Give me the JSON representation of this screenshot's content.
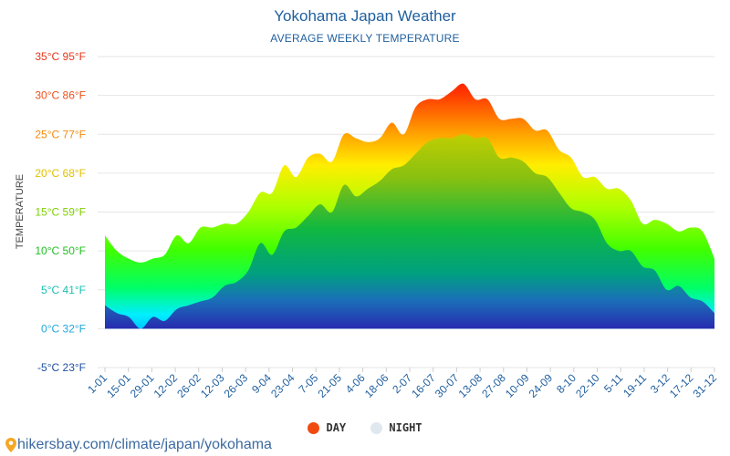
{
  "header": {
    "title": "Yokohama Japan Weather",
    "subtitle": "AVERAGE WEEKLY TEMPERATURE"
  },
  "legend": {
    "day_label": "DAY",
    "night_label": "NIGHT",
    "day_color": "#f04a10",
    "night_color": "#dfe8ef"
  },
  "footer": {
    "url": "hikersbay.com/climate/japan/yokohama",
    "icon": "map-pin-icon",
    "icon_color": "#f5a623"
  },
  "chart_data": {
    "type": "area",
    "title": "Yokohama Japan Weather",
    "subtitle": "AVERAGE WEEKLY TEMPERATURE",
    "ylabel": "TEMPERATURE",
    "xlabel": "",
    "ylim": [
      -5,
      35
    ],
    "grid": true,
    "legend_position": "bottom",
    "y_ticks": [
      {
        "value": 35,
        "label": "35°C 95°F",
        "color": "#e8361a"
      },
      {
        "value": 30,
        "label": "30°C 86°F",
        "color": "#f0501a"
      },
      {
        "value": 25,
        "label": "25°C 77°F",
        "color": "#f58a0a"
      },
      {
        "value": 20,
        "label": "20°C 68°F",
        "color": "#e0c000"
      },
      {
        "value": 15,
        "label": "15°C 59°F",
        "color": "#7fd000"
      },
      {
        "value": 10,
        "label": "10°C 50°F",
        "color": "#20c020"
      },
      {
        "value": 5,
        "label": "5°C 41°F",
        "color": "#18c0b0"
      },
      {
        "value": 0,
        "label": "0°C 32°F",
        "color": "#20a8e0"
      },
      {
        "value": -5,
        "label": "-5°C 23°F",
        "color": "#1f4fa0"
      }
    ],
    "x_tick_labels": [
      "1-01",
      "15-01",
      "29-01",
      "12-02",
      "26-02",
      "12-03",
      "26-03",
      "9-04",
      "23-04",
      "7-05",
      "21-05",
      "4-06",
      "18-06",
      "2-07",
      "16-07",
      "30-07",
      "13-08",
      "27-08",
      "10-09",
      "24-09",
      "8-10",
      "22-10",
      "5-11",
      "19-11",
      "3-12",
      "17-12",
      "31-12"
    ],
    "series": [
      {
        "name": "DAY",
        "values": [
          12,
          10,
          9,
          8.5,
          9,
          9.5,
          12,
          11,
          13,
          13,
          13.5,
          13.5,
          15,
          17.5,
          17.5,
          21,
          19.5,
          22,
          22.5,
          21.5,
          25,
          24.5,
          24,
          24.5,
          26.5,
          25,
          28.5,
          29.5,
          29.5,
          30.5,
          31.5,
          29.5,
          29.5,
          27,
          27,
          27,
          25.5,
          25.5,
          23,
          22,
          19.5,
          19.5,
          18,
          18,
          16.5,
          13.5,
          14,
          13.5,
          12.5,
          13,
          12.5,
          9
        ]
      },
      {
        "name": "NIGHT",
        "values": [
          3,
          2,
          1.5,
          0,
          1.5,
          1,
          2.5,
          3,
          3.5,
          4,
          5.5,
          6,
          7.5,
          11,
          9.5,
          12.5,
          13,
          14.5,
          16,
          15,
          18.5,
          17,
          18,
          19,
          20.5,
          21,
          22.5,
          24,
          24.5,
          24.5,
          25,
          24.5,
          24.5,
          22,
          22,
          21.5,
          20,
          19.5,
          17.5,
          15.5,
          15,
          14,
          11,
          10,
          10,
          8,
          7.5,
          5,
          5.5,
          4,
          3.5,
          2
        ]
      }
    ]
  }
}
